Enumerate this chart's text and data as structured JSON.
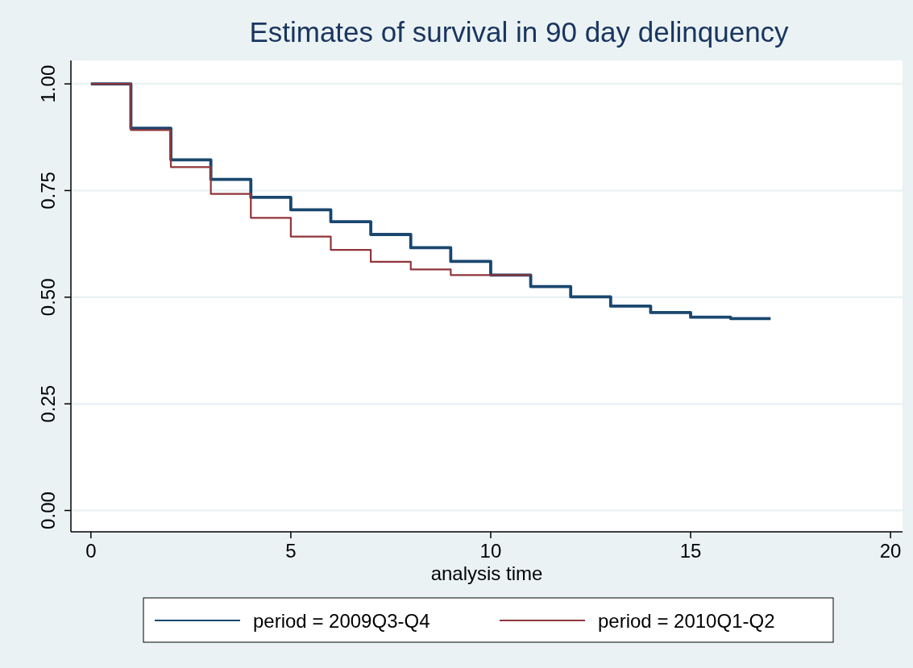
{
  "chart_data": {
    "type": "step",
    "title": "Estimates of survival in 90 day delinquency",
    "xlabel": "analysis time",
    "xlim": [
      -0.5,
      20.3
    ],
    "xticks": [
      0,
      5,
      10,
      15,
      20
    ],
    "ylim": [
      -0.05,
      1.055
    ],
    "yticks": [
      {
        "value": 0,
        "label": "0.00"
      },
      {
        "value": 0.25,
        "label": "0.25"
      },
      {
        "value": 0.5,
        "label": "0.50"
      },
      {
        "value": 0.75,
        "label": "0.75"
      },
      {
        "value": 1,
        "label": "1.00"
      }
    ],
    "grid": "y",
    "legend": "bottom",
    "line_style": "solid",
    "marker": "none",
    "series": [
      {
        "name": "period = 2009Q3-Q4",
        "color": "#1a476f",
        "x": [
          0,
          1,
          2,
          3,
          4,
          5,
          6,
          7,
          8,
          9,
          10,
          11,
          12,
          13,
          14,
          15,
          16,
          17
        ],
        "values": [
          1,
          0.896,
          0.822,
          0.776,
          0.734,
          0.705,
          0.677,
          0.647,
          0.616,
          0.584,
          0.552,
          0.525,
          0.501,
          0.479,
          0.464,
          0.453,
          0.45,
          0.45
        ]
      },
      {
        "name": "period = 2010Q1-Q2",
        "color": "#90353b",
        "x": [
          0,
          1,
          2,
          3,
          4,
          5,
          6,
          7,
          8,
          9,
          10,
          11
        ],
        "values": [
          1,
          0.892,
          0.805,
          0.742,
          0.686,
          0.642,
          0.611,
          0.583,
          0.565,
          0.552,
          0.552,
          0.552
        ]
      }
    ]
  }
}
